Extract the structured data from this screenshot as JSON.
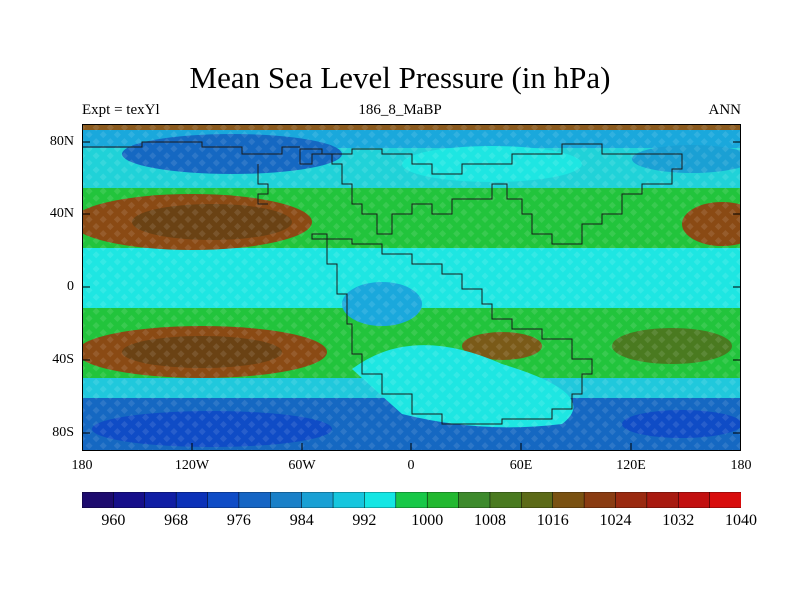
{
  "title": "Mean Sea Level Pressure (in hPa)",
  "left_string": "Expt = texYl",
  "center_string": "186_8_MaBP",
  "right_string": "ANN",
  "lat_ticks": [
    "80N",
    "40N",
    "0",
    "40S",
    "80S"
  ],
  "lon_ticks": [
    "180",
    "120W",
    "60W",
    "0",
    "60E",
    "120E",
    "180"
  ],
  "colorbar": {
    "labels": [
      "960",
      "968",
      "976",
      "984",
      "992",
      "1000",
      "1008",
      "1016",
      "1024",
      "1032",
      "1040"
    ],
    "colors": [
      "#1d0b6e",
      "#160f8a",
      "#101ea4",
      "#0b31b8",
      "#0f4cc6",
      "#1565c4",
      "#1a80c8",
      "#1aa0d4",
      "#16c6de",
      "#14e6e4",
      "#18c848",
      "#22b830",
      "#3d8a2c",
      "#4a7a20",
      "#5c6a18",
      "#7a5212",
      "#8a3c12",
      "#9a2a10",
      "#a81a10",
      "#c21010",
      "#d80c0c"
    ]
  },
  "colors": {
    "blue_high_lat": "#1568c2",
    "mid_blue": "#14a4dc",
    "cyan": "#1ee6e2",
    "green": "#22c43c",
    "brown": "#8a4a14"
  }
}
